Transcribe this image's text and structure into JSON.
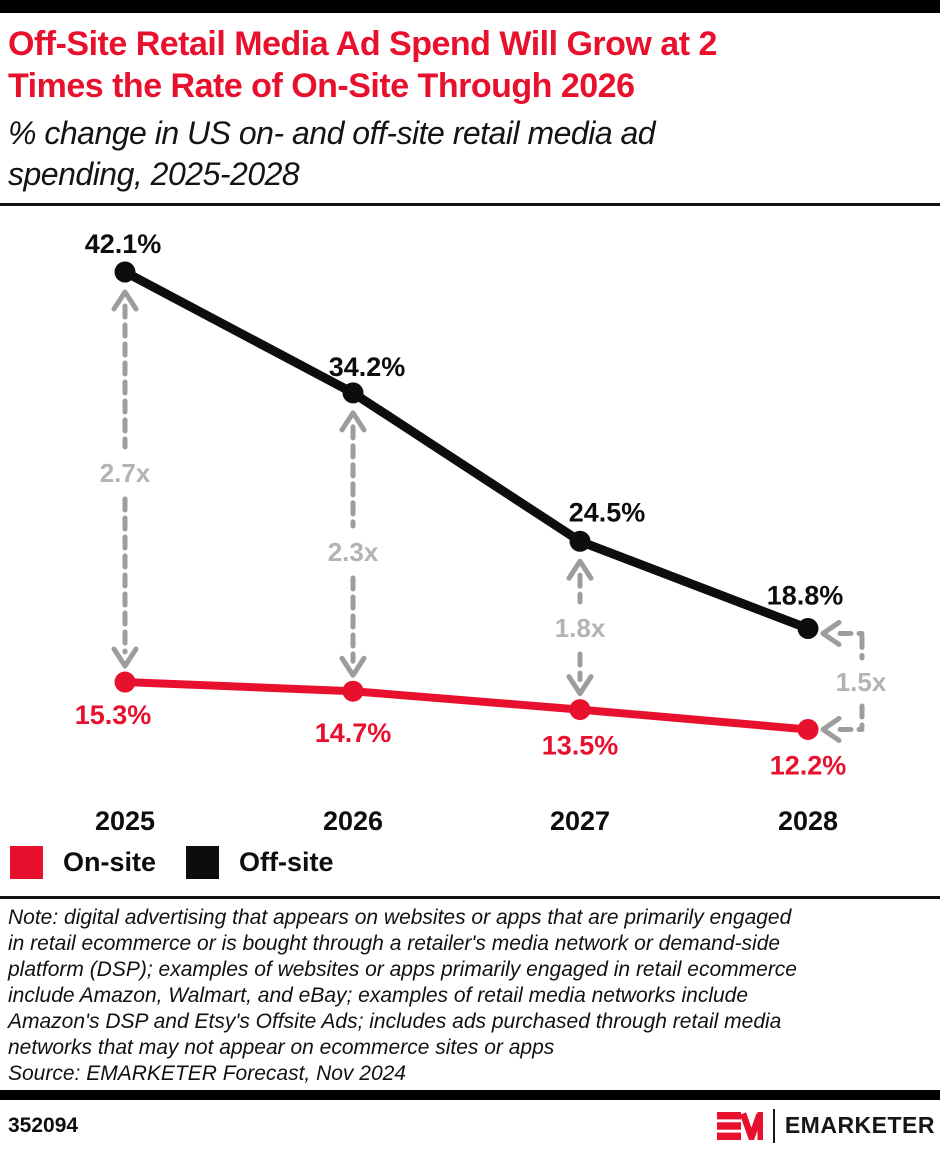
{
  "colors": {
    "brand_red": "#e8112d",
    "series_black": "#0d0d0d",
    "annotation_arrow_gray": "#9d9d9d",
    "annotation_label_gray": "#b3b3b3"
  },
  "header": {
    "title_lines": [
      "Off-Site Retail Media Ad Spend Will Grow at 2",
      "Times the Rate of On-Site Through 2026"
    ],
    "subtitle_lines": [
      "% change in US on- and off-site retail media ad",
      "spending, 2025-2028"
    ]
  },
  "chart_data": {
    "type": "line",
    "categories": [
      "2025",
      "2026",
      "2027",
      "2028"
    ],
    "series": [
      {
        "name": "Off-site",
        "color": "#0d0d0d",
        "values": [
          42.1,
          34.2,
          24.5,
          18.8
        ],
        "point_labels": [
          "42.1%",
          "34.2%",
          "24.5%",
          "18.8%"
        ]
      },
      {
        "name": "On-site",
        "color": "#e8112d",
        "values": [
          15.3,
          14.7,
          13.5,
          12.2
        ],
        "point_labels": [
          "15.3%",
          "14.7%",
          "13.5%",
          "12.2%"
        ]
      }
    ],
    "ratio_annotations": [
      {
        "category": "2025",
        "label": "2.7x"
      },
      {
        "category": "2026",
        "label": "2.3x"
      },
      {
        "category": "2027",
        "label": "1.8x"
      },
      {
        "category": "2028",
        "label": "1.5x"
      }
    ],
    "ylim": [
      10,
      45
    ],
    "grid": false,
    "legend_position": "bottom-left",
    "xlabel": "",
    "ylabel": ""
  },
  "legend": {
    "items": [
      {
        "label": "On-site",
        "color": "#e8112d"
      },
      {
        "label": "Off-site",
        "color": "#0d0d0d"
      }
    ]
  },
  "note": {
    "lines": [
      "Note: digital advertising that appears on websites or apps that are primarily engaged",
      "in retail ecommerce or is bought through a retailer's media network or demand-side",
      "platform (DSP); examples of websites or apps primarily engaged in retail ecommerce",
      "include Amazon, Walmart, and eBay; examples of retail media networks include",
      "Amazon's DSP and Etsy's Offsite Ads; includes ads purchased through retail media",
      "networks that may not appear on ecommerce sites or apps"
    ],
    "source": "Source: EMARKETER Forecast, Nov 2024"
  },
  "footer": {
    "chart_id": "352094",
    "brand": "EMARKETER"
  }
}
